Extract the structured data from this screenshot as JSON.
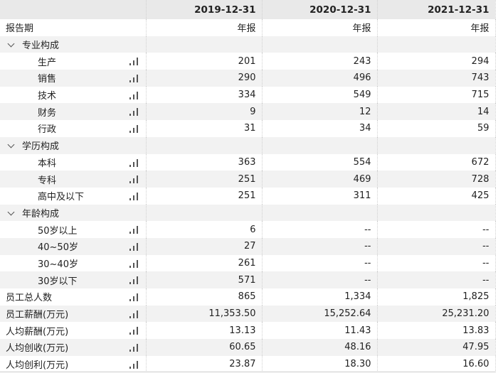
{
  "columns": [
    "",
    "2019-12-31",
    "2020-12-31",
    "2021-12-31"
  ],
  "rows": [
    {
      "label": "报告期",
      "values": [
        "年报",
        "年报",
        "年报"
      ],
      "type": "plain"
    },
    {
      "label": "专业构成",
      "values": [
        "",
        "",
        ""
      ],
      "type": "group"
    },
    {
      "label": "生产",
      "values": [
        "201",
        "243",
        "294"
      ],
      "type": "child"
    },
    {
      "label": "销售",
      "values": [
        "290",
        "496",
        "743"
      ],
      "type": "child"
    },
    {
      "label": "技术",
      "values": [
        "334",
        "549",
        "715"
      ],
      "type": "child"
    },
    {
      "label": "财务",
      "values": [
        "9",
        "12",
        "14"
      ],
      "type": "child"
    },
    {
      "label": "行政",
      "values": [
        "31",
        "34",
        "59"
      ],
      "type": "child"
    },
    {
      "label": "学历构成",
      "values": [
        "",
        "",
        ""
      ],
      "type": "group"
    },
    {
      "label": "本科",
      "values": [
        "363",
        "554",
        "672"
      ],
      "type": "child"
    },
    {
      "label": "专科",
      "values": [
        "251",
        "469",
        "728"
      ],
      "type": "child"
    },
    {
      "label": "高中及以下",
      "values": [
        "251",
        "311",
        "425"
      ],
      "type": "child"
    },
    {
      "label": "年龄构成",
      "values": [
        "",
        "",
        ""
      ],
      "type": "group"
    },
    {
      "label": "50岁以上",
      "values": [
        "6",
        "--",
        "--"
      ],
      "type": "child"
    },
    {
      "label": "40~50岁",
      "values": [
        "27",
        "--",
        "--"
      ],
      "type": "child"
    },
    {
      "label": "30~40岁",
      "values": [
        "261",
        "--",
        "--"
      ],
      "type": "child"
    },
    {
      "label": "30岁以下",
      "values": [
        "571",
        "--",
        "--"
      ],
      "type": "child"
    },
    {
      "label": "员工总人数",
      "values": [
        "865",
        "1,334",
        "1,825"
      ],
      "type": "metric"
    },
    {
      "label": "员工薪酬(万元)",
      "values": [
        "11,353.50",
        "15,252.64",
        "25,231.20"
      ],
      "type": "metric"
    },
    {
      "label": "人均薪酬(万元)",
      "values": [
        "13.13",
        "11.43",
        "13.83"
      ],
      "type": "metric"
    },
    {
      "label": "人均创收(万元)",
      "values": [
        "60.65",
        "48.16",
        "47.95"
      ],
      "type": "metric"
    },
    {
      "label": "人均创利(万元)",
      "values": [
        "23.87",
        "18.30",
        "16.60"
      ],
      "type": "metric"
    }
  ]
}
